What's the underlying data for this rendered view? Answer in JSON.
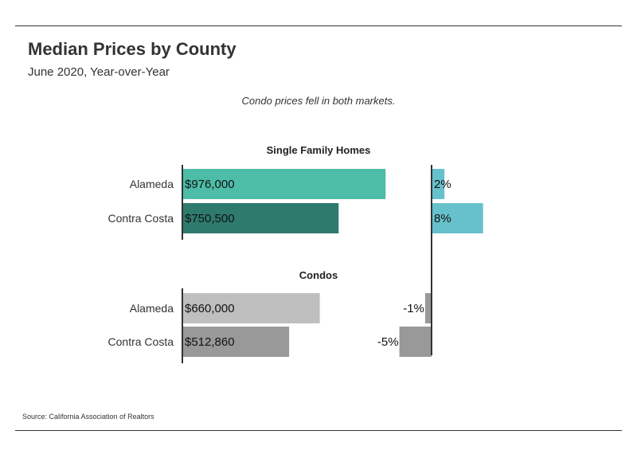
{
  "title": "Median Prices by County",
  "subtitle": "June 2020, Year-over-Year",
  "annotation": "Condo prices fell in both markets.",
  "source": "Source:  California Association of Realtors",
  "colors": {
    "sfh_alameda": "#4dbda7",
    "sfh_contra_costa": "#2e7b6e",
    "sfh_change": "#67c1cc",
    "condo_alameda": "#bfbfbf",
    "condo_contra_costa": "#999999",
    "condo_change": "#999999"
  },
  "chart_data": {
    "type": "bar",
    "orientation": "horizontal",
    "categories": [
      "Alameda",
      "Contra Costa"
    ],
    "groups": [
      {
        "name": "Single Family Homes",
        "prices": [
          976000,
          750500
        ],
        "price_labels": [
          "$976,000",
          "$750,500"
        ],
        "changes": [
          2,
          8
        ],
        "change_labels": [
          "2%",
          "8%"
        ]
      },
      {
        "name": "Condos",
        "prices": [
          660000,
          512860
        ],
        "price_labels": [
          "$660,000",
          "$512,860"
        ],
        "changes": [
          -1,
          -5
        ],
        "change_labels": [
          "-1%",
          "-5%"
        ]
      }
    ],
    "price_xlim": [
      0,
      1170000
    ],
    "change_xlim": [
      -8.8,
      14.7
    ]
  }
}
